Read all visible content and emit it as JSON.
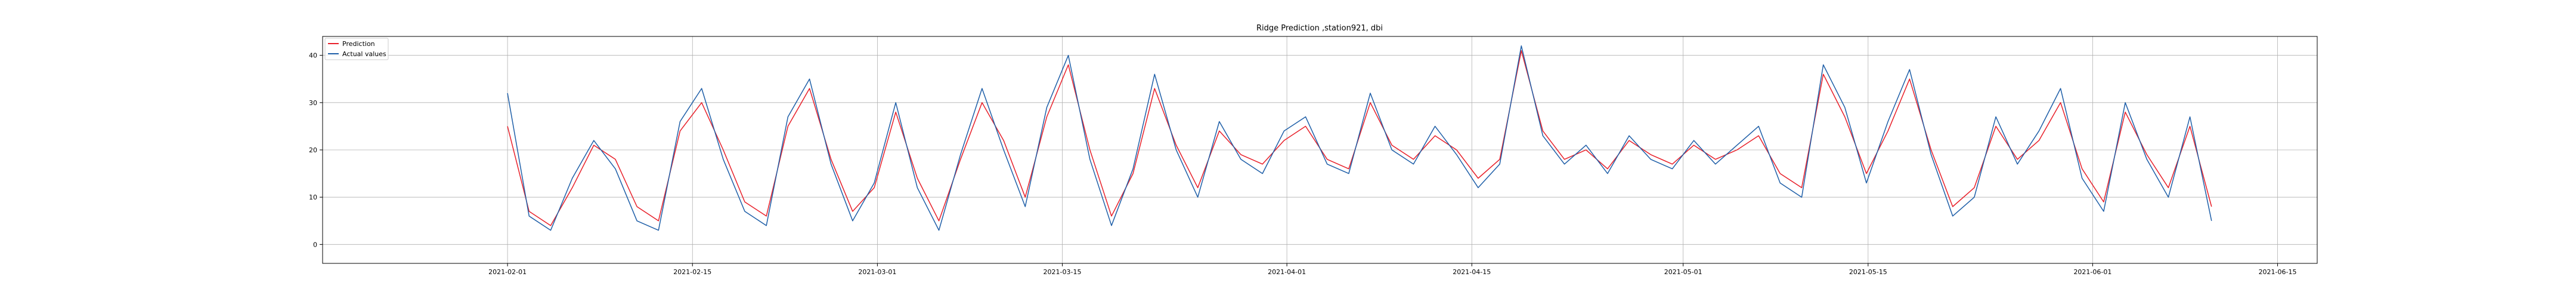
{
  "chart_data": {
    "type": "line",
    "title": "Ridge Prediction ,station921, dbi",
    "xlabel": "",
    "ylabel": "",
    "x_range": [
      "2021-01-18",
      "2021-06-18"
    ],
    "ylim": [
      -4,
      44
    ],
    "x_ticks": [
      "2021-02-01",
      "2021-02-15",
      "2021-03-01",
      "2021-03-15",
      "2021-04-01",
      "2021-04-15",
      "2021-05-01",
      "2021-05-15",
      "2021-06-01",
      "2021-06-15"
    ],
    "y_ticks": [
      0,
      10,
      20,
      30,
      40
    ],
    "grid": true,
    "legend_position": "upper-left",
    "data_start": "2021-02-01",
    "data_end": "2021-06-10",
    "series": [
      {
        "name": "Prediction",
        "color": "#e8202a",
        "values": [
          25,
          7,
          4,
          12,
          21,
          18,
          8,
          5,
          24,
          30,
          20,
          9,
          6,
          25,
          33,
          18,
          7,
          12,
          28,
          14,
          5,
          18,
          30,
          22,
          10,
          27,
          38,
          20,
          6,
          15,
          33,
          21,
          12,
          24,
          19,
          17,
          22,
          25,
          18,
          16,
          30,
          21,
          18,
          23,
          20,
          14,
          18,
          41,
          24,
          18,
          20,
          16,
          22,
          19,
          17,
          21,
          18,
          20,
          23,
          15,
          12,
          36,
          27,
          15,
          24,
          35,
          20,
          8,
          12,
          25,
          18,
          22,
          30,
          16,
          9,
          28,
          19,
          12,
          25,
          8
        ]
      },
      {
        "name": "Actual values",
        "color": "#1f5fa8",
        "values": [
          32,
          6,
          3,
          14,
          22,
          16,
          5,
          3,
          26,
          33,
          18,
          7,
          4,
          27,
          35,
          17,
          5,
          13,
          30,
          12,
          3,
          19,
          33,
          20,
          8,
          29,
          40,
          18,
          4,
          16,
          36,
          20,
          10,
          26,
          18,
          15,
          24,
          27,
          17,
          15,
          32,
          20,
          17,
          25,
          19,
          12,
          17,
          42,
          23,
          17,
          21,
          15,
          23,
          18,
          16,
          22,
          17,
          21,
          25,
          13,
          10,
          38,
          29,
          13,
          26,
          37,
          19,
          6,
          10,
          27,
          17,
          24,
          33,
          14,
          7,
          30,
          18,
          10,
          27,
          5
        ]
      }
    ]
  }
}
